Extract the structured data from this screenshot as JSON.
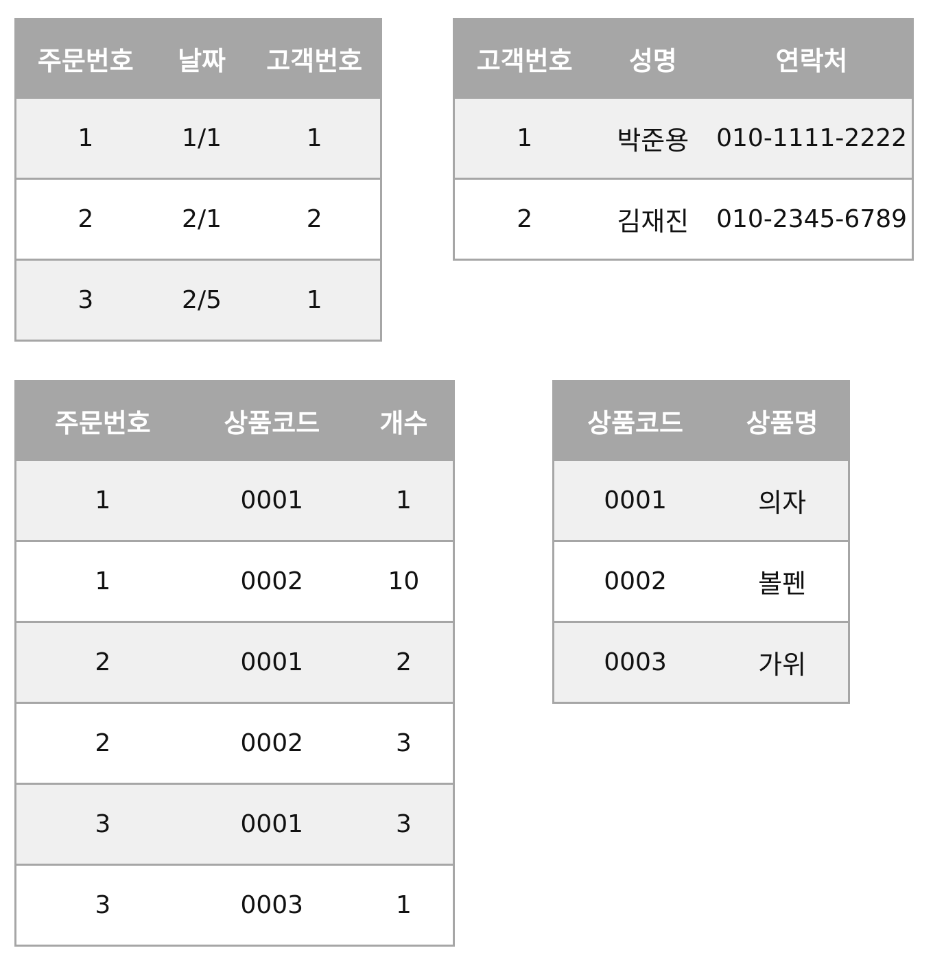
{
  "orders": {
    "headers": [
      "주문번호",
      "날짜",
      "고객번호"
    ],
    "rows": [
      [
        "1",
        "1/1",
        "1"
      ],
      [
        "2",
        "2/1",
        "2"
      ],
      [
        "3",
        "2/5",
        "1"
      ]
    ]
  },
  "customers": {
    "headers": [
      "고객번호",
      "성명",
      "연락처"
    ],
    "rows": [
      [
        "1",
        "박준용",
        "010-1111-2222"
      ],
      [
        "2",
        "김재진",
        "010-2345-6789"
      ]
    ]
  },
  "order_items": {
    "headers": [
      "주문번호",
      "상품코드",
      "개수"
    ],
    "rows": [
      [
        "1",
        "0001",
        "1"
      ],
      [
        "1",
        "0002",
        "10"
      ],
      [
        "2",
        "0001",
        "2"
      ],
      [
        "2",
        "0002",
        "3"
      ],
      [
        "3",
        "0001",
        "3"
      ],
      [
        "3",
        "0003",
        "1"
      ]
    ]
  },
  "products": {
    "headers": [
      "상품코드",
      "상품명"
    ],
    "rows": [
      [
        "0001",
        "의자"
      ],
      [
        "0002",
        "볼펜"
      ],
      [
        "0003",
        "가위"
      ]
    ]
  },
  "colors": {
    "header_bg": "#a6a6a6",
    "header_text": "#ffffff",
    "row_shaded": "#f0f0f0",
    "row_plain": "#ffffff",
    "border": "#a6a6a6"
  }
}
